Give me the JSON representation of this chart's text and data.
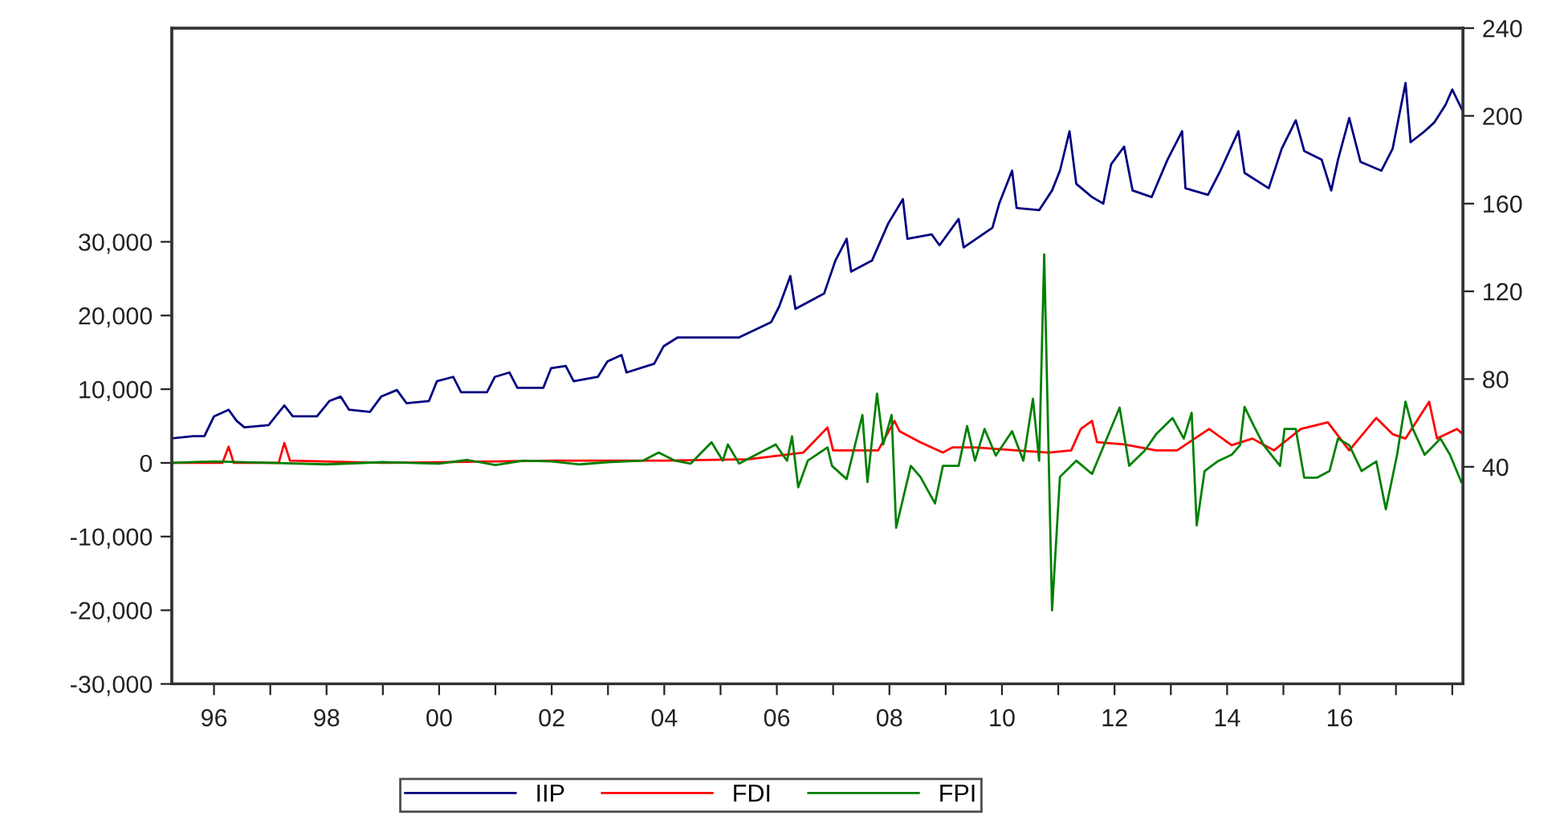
{
  "chart_data": {
    "type": "line",
    "legend": "bottom",
    "grid": false,
    "xlim": [
      1995.25,
      2018.19
    ],
    "xticks": [
      {
        "value": 1996,
        "label": "96"
      },
      {
        "value": 1997,
        "label": null
      },
      {
        "value": 1998,
        "label": "98"
      },
      {
        "value": 1999,
        "label": null
      },
      {
        "value": 2000,
        "label": "00"
      },
      {
        "value": 2001,
        "label": null
      },
      {
        "value": 2002,
        "label": "02"
      },
      {
        "value": 2003,
        "label": null
      },
      {
        "value": 2004,
        "label": "04"
      },
      {
        "value": 2005,
        "label": null
      },
      {
        "value": 2006,
        "label": "06"
      },
      {
        "value": 2007,
        "label": null
      },
      {
        "value": 2008,
        "label": "08"
      },
      {
        "value": 2009,
        "label": null
      },
      {
        "value": 2010,
        "label": "10"
      },
      {
        "value": 2011,
        "label": null
      },
      {
        "value": 2012,
        "label": "12"
      },
      {
        "value": 2013,
        "label": null
      },
      {
        "value": 2014,
        "label": "14"
      },
      {
        "value": 2015,
        "label": null
      },
      {
        "value": 2016,
        "label": "16"
      },
      {
        "value": 2017,
        "label": null
      },
      {
        "value": 2018,
        "label": null
      }
    ],
    "ylim": [
      -30000,
      59000
    ],
    "yticks": [
      {
        "value": -30000,
        "label": "-30,000"
      },
      {
        "value": -20000,
        "label": "-20,000"
      },
      {
        "value": -10000,
        "label": "-10,000"
      },
      0,
      {
        "value": 10000,
        "label": "10,000"
      },
      {
        "value": 20000,
        "label": "20,000"
      },
      {
        "value": 30000,
        "label": "30,000"
      }
    ],
    "y2lim": [
      -59,
      240
    ],
    "y2ticks": [
      40,
      80,
      120,
      160,
      200,
      240
    ],
    "series": [
      {
        "name": "IIP",
        "color": "#000080",
        "axis": "y2",
        "x": [
          1995.26,
          1995.63,
          1995.83,
          1996.0,
          1996.26,
          1996.4,
          1996.54,
          1996.97,
          1997.25,
          1997.4,
          1997.83,
          1998.05,
          1998.25,
          1998.4,
          1998.77,
          1998.97,
          1999.25,
          1999.42,
          1999.82,
          1999.96,
          2000.25,
          2000.39,
          2000.85,
          2000.99,
          2001.25,
          2001.39,
          2001.85,
          2001.99,
          2002.25,
          2002.39,
          2002.82,
          2002.99,
          2003.24,
          2003.33,
          2003.82,
          2003.99,
          2004.24,
          2005.33,
          2005.9,
          2006.04,
          2006.24,
          2006.33,
          2006.84,
          2007.04,
          2007.24,
          2007.32,
          2007.69,
          2007.98,
          2008.24,
          2008.32,
          2008.75,
          2008.89,
          2009.23,
          2009.32,
          2009.83,
          2009.95,
          2010.18,
          2010.26,
          2010.66,
          2010.89,
          2011.03,
          2011.2,
          2011.32,
          2011.6,
          2011.8,
          2011.94,
          2012.17,
          2012.32,
          2012.66,
          2012.94,
          2013.2,
          2013.26,
          2013.66,
          2013.88,
          2014.2,
          2014.31,
          2014.74,
          2014.97,
          2015.22,
          2015.37,
          2015.68,
          2015.85,
          2015.97,
          2016.17,
          2016.37,
          2016.74,
          2016.94,
          2017.17,
          2017.26,
          2017.51,
          2017.68,
          2017.88,
          2018.0,
          2018.19
        ],
        "values": [
          53,
          54,
          54,
          63,
          66,
          61,
          58,
          59,
          68,
          63,
          63,
          70,
          72,
          66,
          65,
          72,
          75,
          69,
          70,
          79,
          81,
          74,
          74,
          81,
          83,
          76,
          76,
          85,
          86,
          79,
          81,
          88,
          91,
          83,
          87,
          95,
          99,
          99,
          106,
          113,
          127,
          112,
          119,
          134,
          144,
          129,
          134,
          151,
          162,
          144,
          146,
          141,
          153,
          140,
          149,
          160,
          175,
          158,
          157,
          166,
          175,
          193,
          169,
          163,
          160,
          178,
          186,
          166,
          163,
          180,
          193,
          167,
          164,
          175,
          193,
          174,
          167,
          185,
          198,
          184,
          180,
          166,
          180,
          199,
          179,
          175,
          185,
          215,
          188,
          193,
          197,
          205,
          212,
          202
        ]
      },
      {
        "name": "FDI",
        "color": "#ff0000",
        "x": [
          1995.26,
          1996.15,
          1996.26,
          1996.35,
          1997.15,
          1997.25,
          1997.35,
          1999.0,
          2002.0,
          2004.0,
          2005.5,
          2006.47,
          2006.9,
          2007.0,
          2007.8,
          2008.09,
          2008.18,
          2008.55,
          2008.95,
          2009.12,
          2009.52,
          2010.26,
          2010.83,
          2011.23,
          2011.4,
          2011.6,
          2011.69,
          2012.17,
          2012.74,
          2013.11,
          2013.68,
          2014.08,
          2014.45,
          2014.83,
          2015.31,
          2015.79,
          2016.17,
          2016.65,
          2016.94,
          2017.17,
          2017.59,
          2017.73,
          2018.08,
          2018.19
        ],
        "values": [
          0,
          0,
          2200,
          0,
          0,
          2700,
          300,
          0,
          300,
          300,
          500,
          1400,
          4800,
          1700,
          1700,
          5700,
          4300,
          2800,
          1400,
          2100,
          2100,
          1700,
          1400,
          1700,
          4600,
          5700,
          2800,
          2500,
          1700,
          1700,
          4600,
          2400,
          3300,
          1700,
          4600,
          5500,
          1700,
          6100,
          3900,
          3300,
          8300,
          3300,
          4600,
          3900
        ]
      },
      {
        "name": "FPI",
        "color": "#008000",
        "x": [
          1995.26,
          1996.0,
          1997.0,
          1998.0,
          1999.0,
          2000.0,
          2000.5,
          2001.0,
          2001.5,
          2002.0,
          2002.5,
          2003.0,
          2003.62,
          2003.9,
          2004.19,
          2004.47,
          2004.84,
          2005.04,
          2005.13,
          2005.33,
          2005.98,
          2006.18,
          2006.27,
          2006.38,
          2006.55,
          2006.9,
          2006.98,
          2007.24,
          2007.52,
          2007.61,
          2007.78,
          2007.89,
          2008.04,
          2008.12,
          2008.38,
          2008.55,
          2008.81,
          2008.95,
          2009.23,
          2009.38,
          2009.52,
          2009.69,
          2009.89,
          2010.18,
          2010.38,
          2010.55,
          2010.66,
          2010.75,
          2010.89,
          2011.03,
          2011.32,
          2011.6,
          2012.09,
          2012.26,
          2012.54,
          2012.74,
          2013.03,
          2013.23,
          2013.37,
          2013.46,
          2013.6,
          2013.83,
          2014.08,
          2014.23,
          2014.31,
          2014.45,
          2014.65,
          2014.94,
          2015.02,
          2015.22,
          2015.37,
          2015.6,
          2015.82,
          2015.97,
          2016.17,
          2016.39,
          2016.65,
          2016.82,
          2017.02,
          2017.17,
          2017.3,
          2017.51,
          2017.79,
          2017.96,
          2018.16
        ],
        "values": [
          0,
          200,
          0,
          -200,
          100,
          -100,
          400,
          -300,
          300,
          200,
          -200,
          100,
          300,
          1400,
          300,
          -100,
          2800,
          300,
          2500,
          -100,
          2500,
          300,
          3600,
          -3300,
          300,
          2100,
          -400,
          -2200,
          6500,
          -2600,
          9400,
          2500,
          6500,
          -8800,
          -400,
          -1900,
          -5500,
          -400,
          -400,
          5000,
          300,
          4600,
          1000,
          4300,
          300,
          8700,
          300,
          28300,
          -20000,
          -1900,
          300,
          -1500,
          7500,
          -400,
          1700,
          3900,
          6100,
          3300,
          6800,
          -8500,
          -1100,
          200,
          1100,
          2400,
          7600,
          5400,
          2400,
          -400,
          4600,
          4600,
          -2000,
          -2000,
          -1100,
          3300,
          2400,
          -1100,
          200,
          -6300,
          1100,
          8300,
          4600,
          1100,
          3300,
          1100,
          -2600
        ]
      }
    ]
  }
}
